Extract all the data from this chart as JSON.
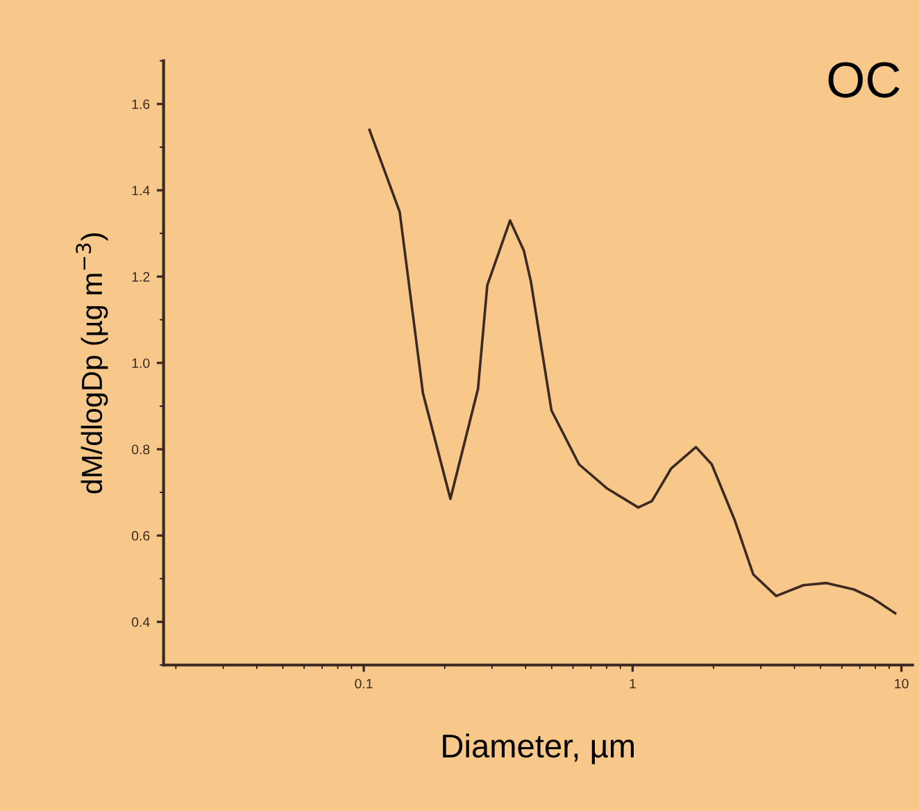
{
  "chart_data": {
    "type": "line",
    "title": "OC",
    "xlabel": "Diameter, µm",
    "ylabel": "dM/dlogDp (µg m$^{−3}$)",
    "log": "x",
    "xlim": [
      0.018,
      11
    ],
    "ylim": [
      0.3,
      1.7
    ],
    "xticks": [
      {
        "value": 0.1,
        "label": "0.1"
      },
      {
        "value": 1,
        "label": "1"
      },
      {
        "value": 10,
        "label": "10"
      }
    ],
    "yticks": [
      {
        "value": 0.4,
        "label": "0.4"
      },
      {
        "value": 0.6,
        "label": "0.6"
      },
      {
        "value": 0.8,
        "label": "0.8"
      },
      {
        "value": 1.0,
        "label": "1.0"
      },
      {
        "value": 1.2,
        "label": "1.2"
      },
      {
        "value": 1.4,
        "label": "1.4"
      },
      {
        "value": 1.6,
        "label": "1.6"
      }
    ],
    "grid": false,
    "legend": false,
    "marker": "none",
    "line_style": "solid",
    "series": [
      {
        "color": "#3a2a22",
        "x": [
          0.105,
          0.136,
          0.166,
          0.21,
          0.266,
          0.288,
          0.35,
          0.394,
          0.418,
          0.499,
          0.632,
          0.8,
          1.05,
          1.18,
          1.39,
          1.72,
          1.97,
          2.4,
          2.81,
          3.42,
          4.32,
          5.27,
          6.66,
          7.8,
          9.48
        ],
        "values": [
          1.54,
          1.35,
          0.93,
          0.685,
          0.94,
          1.18,
          1.33,
          1.26,
          1.19,
          0.89,
          0.765,
          0.71,
          0.665,
          0.68,
          0.755,
          0.805,
          0.765,
          0.635,
          0.51,
          0.46,
          0.485,
          0.49,
          0.475,
          0.455,
          0.42
        ]
      }
    ]
  }
}
